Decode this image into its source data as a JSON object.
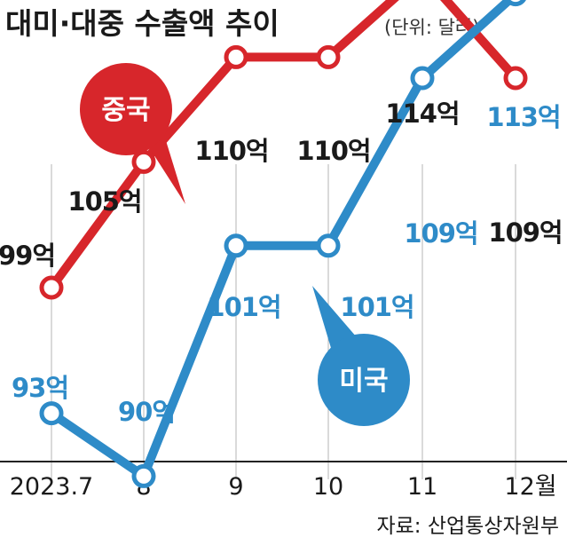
{
  "title": "대미·대중 수출액 추이",
  "unit": "(단위: 달러)",
  "source": "자료: 산업통상자원부",
  "colors": {
    "china": "#d7262b",
    "usa": "#2e8bc8",
    "text": "#1a1a1a",
    "grid": "#b5b5b5"
  },
  "chart_data": {
    "type": "line",
    "categories": [
      "2023.7",
      "8",
      "9",
      "10",
      "11",
      "12월"
    ],
    "ylim": [
      85,
      118
    ],
    "series": [
      {
        "name": "중국",
        "values": [
          99,
          105,
          110,
          110,
          114,
          109
        ],
        "labels": [
          "99억",
          "105억",
          "110억",
          "110억",
          "114억",
          "109억"
        ]
      },
      {
        "name": "미국",
        "values": [
          93,
          90,
          101,
          101,
          109,
          113
        ],
        "labels": [
          "93억",
          "90억",
          "101억",
          "101억",
          "109억",
          "113억"
        ]
      }
    ]
  }
}
